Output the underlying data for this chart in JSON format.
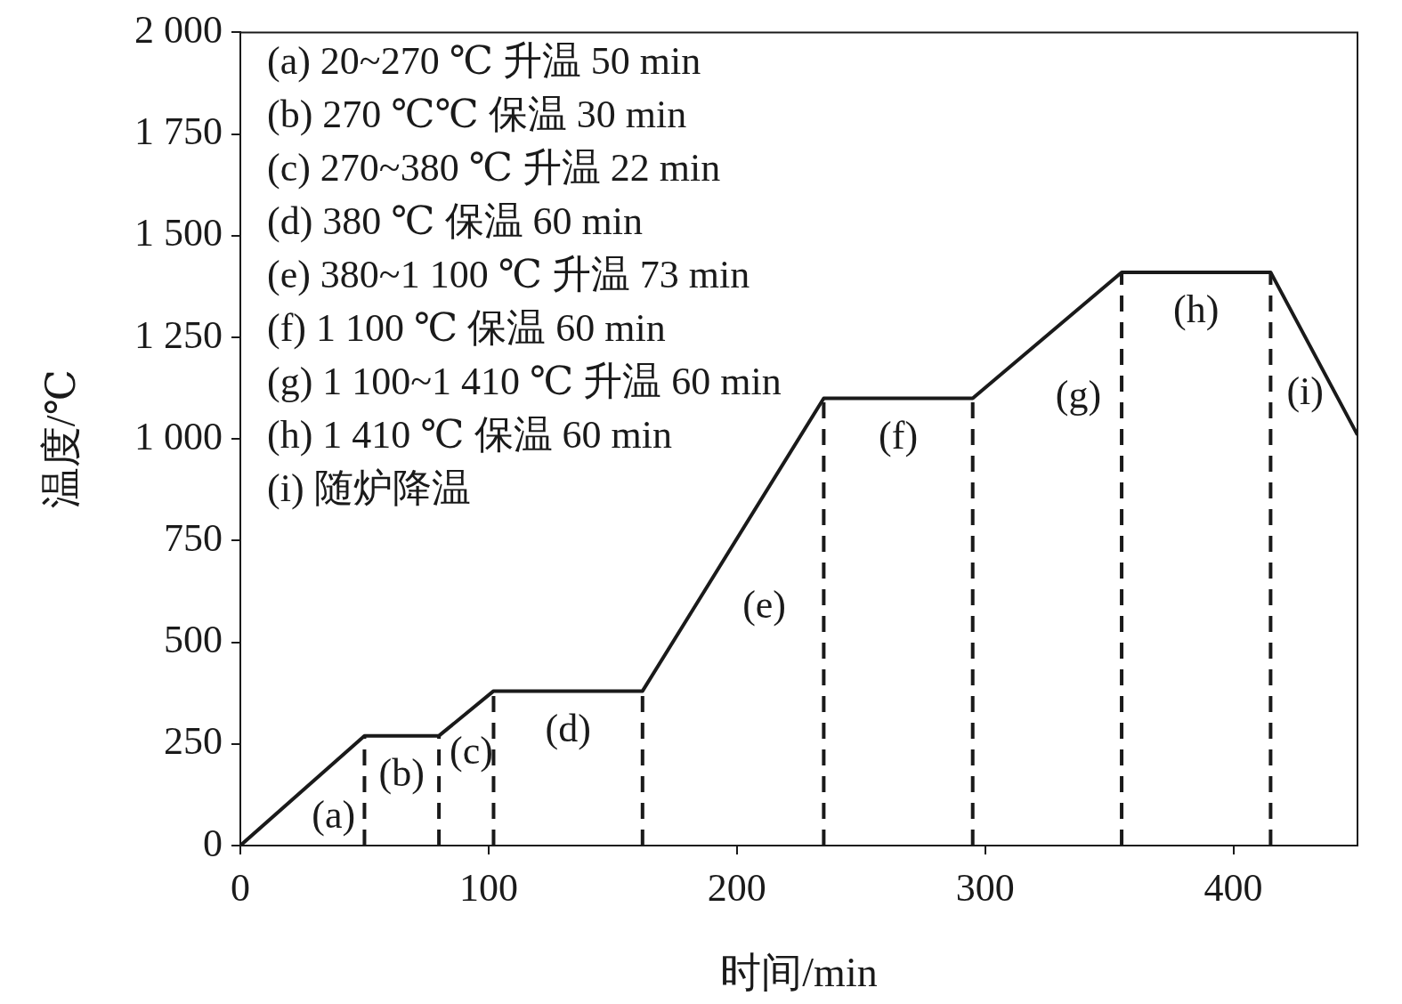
{
  "chart_data": {
    "type": "line",
    "xlabel": "时间/min",
    "ylabel": "温度/℃",
    "x": [
      0,
      50,
      80,
      102,
      162,
      235,
      295,
      355,
      415,
      450
    ],
    "series": [
      {
        "color": "#1a1a1a",
        "values": [
          0,
          270,
          270,
          380,
          380,
          1100,
          1100,
          1410,
          1410,
          1010
        ]
      }
    ],
    "xlim": [
      0,
      450
    ],
    "xticks": [
      0,
      100,
      200,
      300,
      400
    ],
    "ylim": [
      0,
      2000
    ],
    "yticks": [
      0,
      250,
      500,
      750,
      {
        "value": 1000,
        "label": "1 000"
      },
      {
        "value": 1250,
        "label": "1 250"
      },
      {
        "value": 1500,
        "label": "1 500"
      },
      {
        "value": 1750,
        "label": "1 750"
      },
      {
        "value": 2000,
        "label": "2 000"
      }
    ],
    "ref_lines": [
      {
        "axis": "x",
        "value": 50,
        "line_style": "dashed"
      },
      {
        "axis": "x",
        "value": 80,
        "line_style": "dashed"
      },
      {
        "axis": "x",
        "value": 102,
        "line_style": "dashed"
      },
      {
        "axis": "x",
        "value": 162,
        "line_style": "dashed"
      },
      {
        "axis": "x",
        "value": 235,
        "line_style": "dashed"
      },
      {
        "axis": "x",
        "value": 295,
        "line_style": "dashed"
      },
      {
        "axis": "x",
        "value": 355,
        "line_style": "dashed"
      },
      {
        "axis": "x",
        "value": 415,
        "line_style": "dashed"
      }
    ],
    "annotations": [
      "(a) 20~270 ℃ 升温 50 min",
      "(b) 270 ℃℃ 保温 30 min",
      "(c) 270~380 ℃ 升温 22 min",
      "(d) 380 ℃ 保温 60 min",
      "(e) 380~1 100 ℃ 升温 73 min",
      "(f) 1 100 ℃ 保温 60 min",
      "(g) 1 100~1 410 ℃ 升温 60 min",
      "(h) 1 410 ℃ 保温 60 min",
      "(i) 随炉降温",
      "(a)",
      "(b)",
      "(c)",
      "(d)",
      "(e)",
      "(f)",
      "(g)",
      "(h)",
      "(i)"
    ]
  }
}
